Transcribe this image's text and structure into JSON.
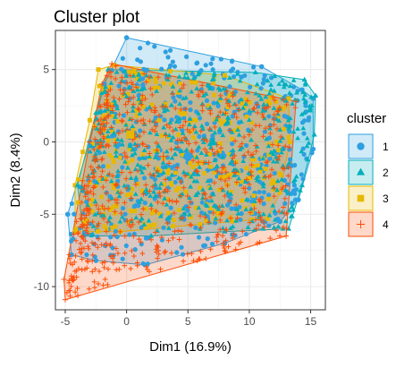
{
  "chart_data": {
    "type": "scatter",
    "title": "Cluster plot",
    "xlabel": "Dim1 (16.9%)",
    "ylabel": "Dim2 (8.4%)",
    "xlim": [
      -5.8,
      16.2
    ],
    "ylim": [
      -11.6,
      7.7
    ],
    "xticks": [
      -5,
      0,
      5,
      10,
      15
    ],
    "yticks": [
      -10,
      -5,
      0,
      5
    ],
    "grid": true,
    "legend": {
      "title": "cluster",
      "position": "right"
    },
    "series": [
      {
        "name": "1",
        "color": "#2e9fdf",
        "marker": "circle",
        "hull": [
          [
            0,
            7.2
          ],
          [
            11,
            5.2
          ],
          [
            14.3,
            3.6
          ],
          [
            15.2,
            3
          ],
          [
            15.2,
            -0.5
          ],
          [
            14,
            -4
          ],
          [
            12.5,
            -5.5
          ],
          [
            8,
            -7
          ],
          [
            1.5,
            -8.5
          ],
          [
            -2.5,
            -8.2
          ],
          [
            -4.5,
            -7.8
          ],
          [
            -4.8,
            -5
          ],
          [
            -3,
            0
          ],
          [
            -1.8,
            4
          ]
        ],
        "centroid": [
          5,
          -1
        ]
      },
      {
        "name": "2",
        "color": "#00afbb",
        "marker": "triangle",
        "hull": [
          [
            -1.5,
            5
          ],
          [
            10.5,
            4.8
          ],
          [
            14.5,
            4.3
          ],
          [
            15.4,
            3.2
          ],
          [
            15.3,
            0.5
          ],
          [
            14.3,
            -3
          ],
          [
            13.2,
            -6
          ],
          [
            8,
            -6.2
          ],
          [
            2,
            -6.5
          ],
          [
            -3.5,
            -6.5
          ],
          [
            -4,
            -3
          ],
          [
            -2.5,
            2
          ]
        ],
        "centroid": [
          7,
          0
        ]
      },
      {
        "name": "3",
        "color": "#e7b800",
        "marker": "square",
        "hull": [
          [
            -2.3,
            5
          ],
          [
            -1,
            5.3
          ],
          [
            8,
            4.6
          ],
          [
            13.2,
            3
          ],
          [
            13.3,
            0
          ],
          [
            12.5,
            -3.5
          ],
          [
            11.5,
            -5.3
          ],
          [
            6,
            -5.7
          ],
          [
            -0.5,
            -6.2
          ],
          [
            -4.2,
            -6.2
          ],
          [
            -4.2,
            -3
          ],
          [
            -3,
            1.5
          ]
        ],
        "centroid": [
          0.3,
          0.5
        ]
      },
      {
        "name": "4",
        "color": "#fc4e07",
        "marker": "cross",
        "hull": [
          [
            -1.2,
            5.4
          ],
          [
            13.8,
            2.8
          ],
          [
            13,
            -6.5
          ],
          [
            -5,
            -10.9
          ],
          [
            -5.1,
            -9.5
          ],
          [
            -3,
            0
          ],
          [
            -2,
            4
          ]
        ],
        "centroid": [
          3,
          -1
        ]
      }
    ]
  }
}
